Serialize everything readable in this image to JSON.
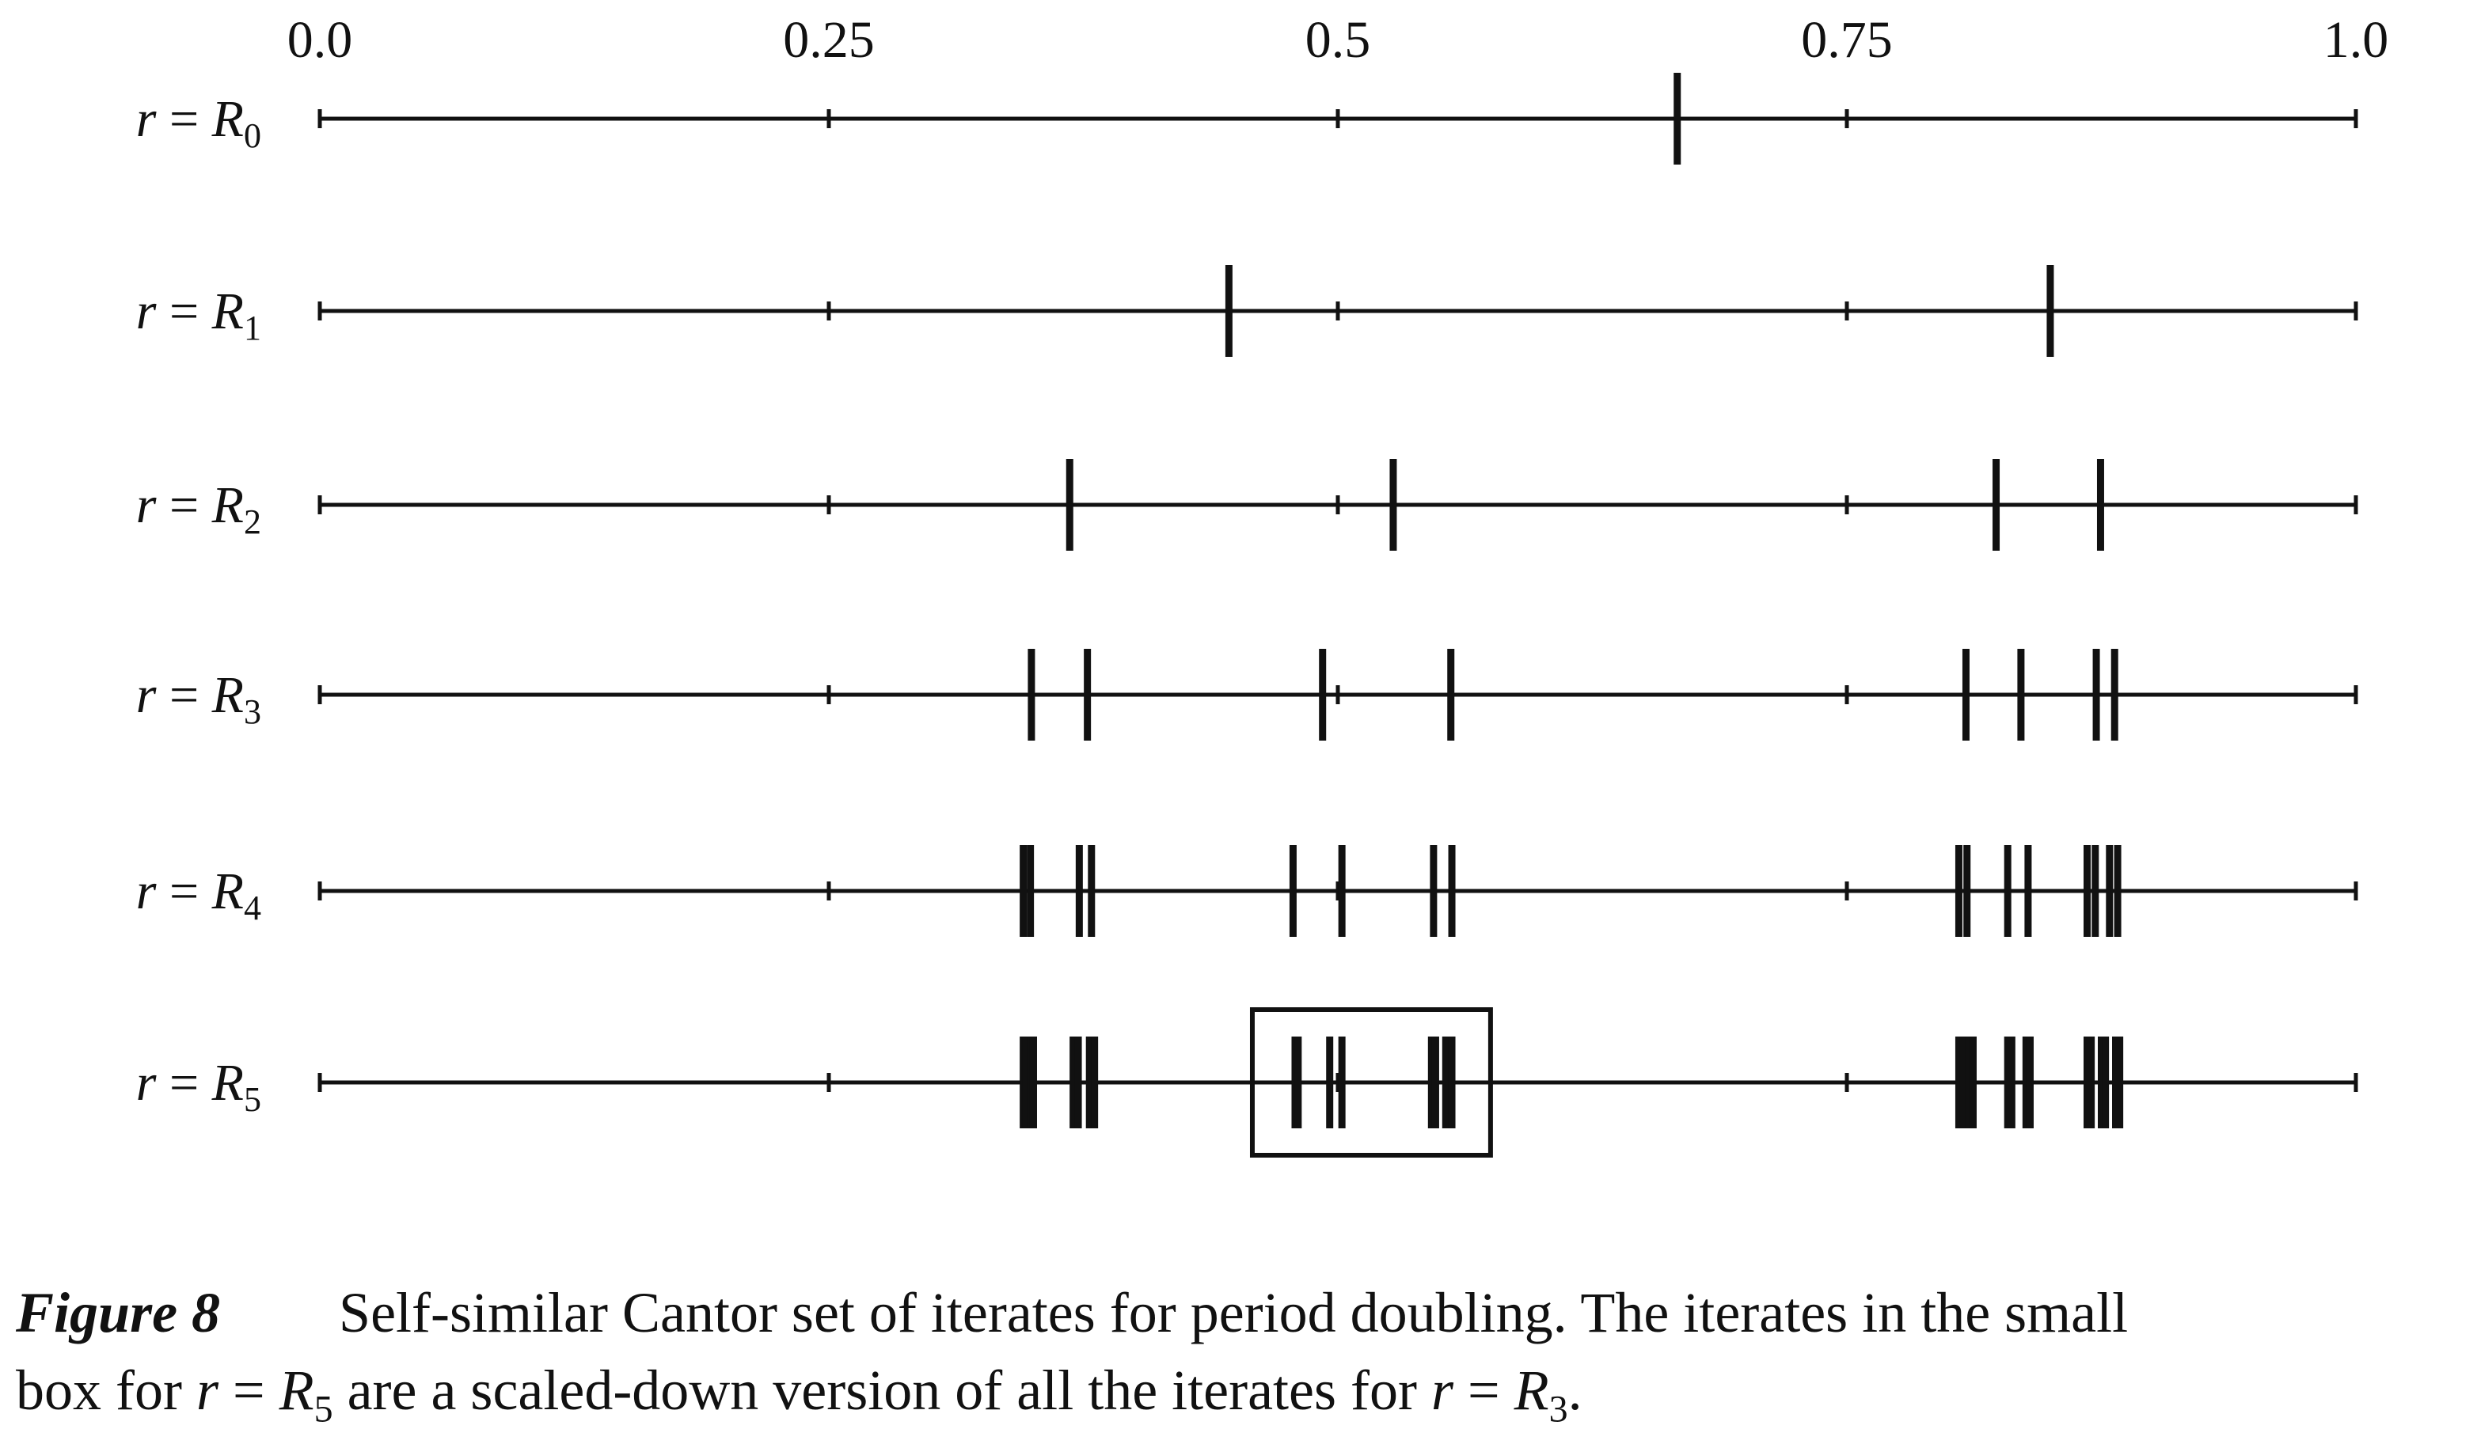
{
  "chart_data": {
    "type": "scatter",
    "x_ticks": [
      "0.0",
      "0.25",
      "0.5",
      "0.75",
      "1.0"
    ],
    "xlim": [
      0.0,
      1.0
    ],
    "rows": [
      {
        "label_var": "r",
        "label_eq": "=",
        "label_R": "R",
        "label_sub": "0",
        "points": [
          0.6667
        ]
      },
      {
        "label_var": "r",
        "label_eq": "=",
        "label_R": "R",
        "label_sub": "1",
        "points": [
          0.4465,
          0.8499
        ]
      },
      {
        "label_var": "r",
        "label_eq": "=",
        "label_R": "R",
        "label_sub": "2",
        "points": [
          0.3683,
          0.5272,
          0.8233,
          0.8746
        ]
      },
      {
        "label_var": "r",
        "label_eq": "=",
        "label_R": "R",
        "label_sub": "3",
        "points": [
          0.3495,
          0.377,
          0.4925,
          0.5555,
          0.8085,
          0.8355,
          0.8725,
          0.8815
        ]
      },
      {
        "label_var": "r",
        "label_eq": "=",
        "label_R": "R",
        "label_sub": "4",
        "points": [
          0.3455,
          0.349,
          0.373,
          0.379,
          0.478,
          0.502,
          0.547,
          0.556,
          0.805,
          0.809,
          0.829,
          0.839,
          0.868,
          0.872,
          0.879,
          0.883
        ]
      },
      {
        "label_var": "r",
        "label_eq": "=",
        "label_R": "R",
        "label_sub": "5",
        "points": [
          0.3455,
          0.347,
          0.349,
          0.3505,
          0.37,
          0.3725,
          0.378,
          0.3805,
          0.479,
          0.4805,
          0.496,
          0.502,
          0.546,
          0.548,
          0.553,
          0.556,
          0.805,
          0.807,
          0.81,
          0.812,
          0.829,
          0.831,
          0.838,
          0.84,
          0.868,
          0.87,
          0.875,
          0.877,
          0.882,
          0.884
        ],
        "box": [
          0.458,
          0.575
        ]
      }
    ],
    "caption_label": "Figure 8",
    "caption_line1": "Self-similar Cantor set of iterates for period doubling. The iterates in the small",
    "caption_line2a": "box for ",
    "caption_line2b": "r",
    "caption_line2c": " = ",
    "caption_line2d": "R",
    "caption_line2e": "5",
    "caption_line2f": " are a scaled-down version of all the iterates for ",
    "caption_line2g": "r",
    "caption_line2h": " = ",
    "caption_line2i": "R",
    "caption_line2j": "3",
    "caption_line2k": "."
  }
}
